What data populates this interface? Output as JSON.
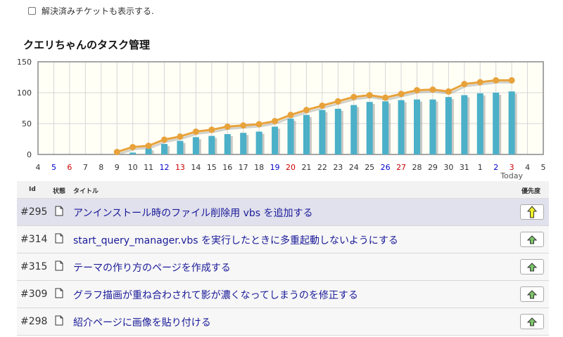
{
  "filter": {
    "show_resolved_label": "解決済みチケットも表示する."
  },
  "chart_title": "クエリちゃんのタスク管理",
  "chart_data": {
    "type": "bar+line",
    "title": "クエリちゃんのタスク管理",
    "ylim": [
      0,
      150
    ],
    "yticks": [
      "0",
      "50",
      "100",
      "150"
    ],
    "grid": true,
    "categories": [
      "4",
      "5",
      "6",
      "7",
      "8",
      "9",
      "10",
      "11",
      "12",
      "13",
      "14",
      "15",
      "16",
      "17",
      "18",
      "19",
      "20",
      "21",
      "22",
      "23",
      "24",
      "25",
      "26",
      "27",
      "28",
      "29",
      "30",
      "31",
      "1",
      "2",
      "3",
      "4",
      "5"
    ],
    "category_colors": [
      "#333333",
      "#0000cc",
      "#cc0000",
      "#333333",
      "#333333",
      "#333333",
      "#333333",
      "#333333",
      "#0000cc",
      "#cc0000",
      "#333333",
      "#333333",
      "#333333",
      "#333333",
      "#333333",
      "#0000cc",
      "#cc0000",
      "#333333",
      "#333333",
      "#333333",
      "#333333",
      "#333333",
      "#0000cc",
      "#cc0000",
      "#333333",
      "#333333",
      "#333333",
      "#333333",
      "#333333",
      "#0000cc",
      "#cc0000",
      "#333333",
      "#333333"
    ],
    "today_label": "Today",
    "series": [
      {
        "type": "bar",
        "color": "#4bb0c8",
        "values": [
          0,
          0,
          0,
          0,
          0,
          0,
          3,
          10,
          17,
          22,
          28,
          30,
          33,
          35,
          37,
          45,
          58,
          64,
          72,
          74,
          80,
          85,
          86,
          88,
          89,
          89,
          93,
          96,
          99,
          100,
          102,
          null,
          null
        ]
      },
      {
        "type": "line",
        "color": "#e8a23a",
        "values": [
          null,
          null,
          null,
          null,
          null,
          4,
          12,
          14,
          24,
          29,
          37,
          40,
          45,
          47,
          49,
          54,
          64,
          72,
          79,
          86,
          93,
          96,
          92,
          98,
          104,
          105,
          102,
          114,
          117,
          120,
          120,
          null,
          null
        ]
      }
    ]
  },
  "table": {
    "headers": {
      "id": "Id",
      "status": "状態",
      "title": "タイトル",
      "priority": "優先度"
    },
    "rows": [
      {
        "id": "#295",
        "title": "アンインストール時のファイル削除用 vbs を追加する",
        "priority": "high"
      },
      {
        "id": "#314",
        "title": "start_query_manager.vbs を実行したときに多重起動しないようにする",
        "priority": "normal"
      },
      {
        "id": "#315",
        "title": "テーマの作り方のページを作成する",
        "priority": "normal"
      },
      {
        "id": "#309",
        "title": "グラフ描画が重ね合わされて影が濃くなってしまうのを修正する",
        "priority": "normal"
      },
      {
        "id": "#298",
        "title": "紹介ページに画像を貼り付ける",
        "priority": "normal"
      }
    ]
  },
  "colors": {
    "priority_high": "#f0ef2a",
    "priority_normal": "#7cc46a"
  }
}
